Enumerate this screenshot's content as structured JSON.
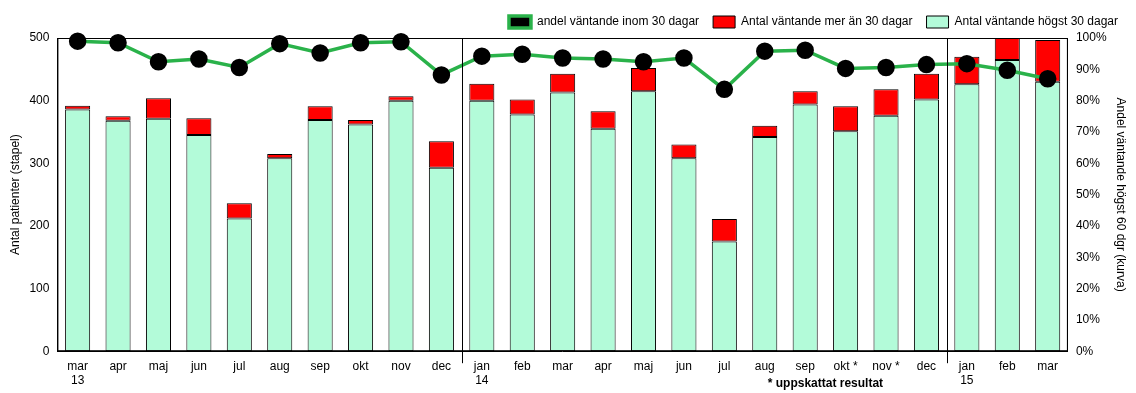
{
  "chart_data": {
    "type": "bar",
    "stacked": true,
    "grid": false,
    "legend": "upper right",
    "ylabel": "Antal patienter (stapel)",
    "y2label": "Andel väntande högst 60 dgr (kurva)",
    "annotation": "* uppskattat resultat",
    "categories": [
      "mar\n13",
      "apr",
      "maj",
      "jun",
      "jul",
      "aug",
      "sep",
      "okt",
      "nov",
      "dec",
      "jan\n14",
      "feb",
      "mar",
      "apr",
      "maj",
      "jun",
      "jul",
      "aug",
      "sep",
      "okt *",
      "nov *",
      "dec",
      "jan\n15",
      "feb",
      "mar"
    ],
    "ylim": [
      0,
      500
    ],
    "yticks": [
      0,
      100,
      200,
      300,
      400,
      500
    ],
    "y2lim": [
      0,
      100
    ],
    "y2ticks": [
      {
        "value": 0,
        "label": "0%"
      },
      {
        "value": 10,
        "label": "10%"
      },
      {
        "value": 20,
        "label": "20%"
      },
      {
        "value": 30,
        "label": "30%"
      },
      {
        "value": 40,
        "label": "40%"
      },
      {
        "value": 50,
        "label": "50%"
      },
      {
        "value": 60,
        "label": "60%"
      },
      {
        "value": 70,
        "label": "70%"
      },
      {
        "value": 80,
        "label": "80%"
      },
      {
        "value": 90,
        "label": "90%"
      },
      {
        "value": 100,
        "label": "100%"
      }
    ],
    "series": [
      {
        "name": "Antal väntande högst 30 dagar",
        "type": "bar",
        "color": "#b3fbd9",
        "values": [
          386,
          368,
          371,
          345,
          212,
          308,
          369,
          362,
          400,
          293,
          400,
          378,
          413,
          355,
          415,
          308,
          175,
          342,
          394,
          351,
          376,
          402,
          426,
          465,
          430
        ]
      },
      {
        "name": "Antal väntande mer än 30 dagar",
        "type": "bar",
        "color": "#ff0000",
        "values": [
          6,
          7,
          33,
          27,
          24,
          7,
          22,
          7,
          7,
          42,
          27,
          24,
          30,
          28,
          37,
          22,
          36,
          18,
          21,
          40,
          42,
          41,
          44,
          35,
          67
        ]
      },
      {
        "name": "andel väntande inom 30 dagar",
        "type": "line",
        "axis": "y2",
        "color": "#2ab24a",
        "marker": "circle",
        "values": [
          99,
          98.5,
          92.4,
          93.3,
          90.6,
          98.2,
          95.2,
          98.5,
          98.8,
          88.2,
          94.2,
          94.8,
          93.6,
          93.3,
          92.4,
          93.6,
          83.6,
          95.8,
          96.1,
          90.3,
          90.6,
          91.5,
          91.8,
          89.7,
          87
        ]
      }
    ]
  }
}
